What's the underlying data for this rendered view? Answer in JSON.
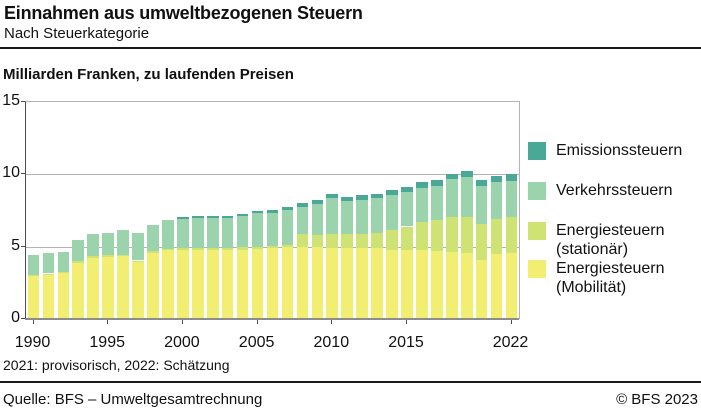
{
  "header": {
    "title": "Einnahmen aus umweltbezogenen Steuern",
    "subtitle": "Nach Steuerkategorie"
  },
  "unit_label": "Milliarden Franken, zu laufenden Preisen",
  "footnote": "2021: provisorisch, 2022: Schätzung",
  "footer": {
    "source": "Quelle: BFS – Umweltgesamtrechnung",
    "copyright": "© BFS 2023"
  },
  "legend": {
    "position": "right",
    "items": [
      {
        "label": "Emissionssteuern",
        "color": "#4AA896"
      },
      {
        "label": "Verkehrssteuern",
        "color": "#9AD3AC"
      },
      {
        "label": "Energiesteuern (stationär)",
        "color": "#CFE375"
      },
      {
        "label": "Energiesteuern (Mobilität)",
        "color": "#F1EE71"
      }
    ]
  },
  "chart_data": {
    "type": "bar",
    "stacked": true,
    "title": "Einnahmen aus umweltbezogenen Steuern",
    "ylabel": "Milliarden Franken, zu laufenden Preisen",
    "ylim": [
      0,
      15
    ],
    "yticks": [
      0,
      5,
      10,
      15
    ],
    "gridlines": [
      5,
      10
    ],
    "grid": "horizontal",
    "legend_position": "right",
    "x": [
      1990,
      1991,
      1992,
      1993,
      1994,
      1995,
      1996,
      1997,
      1998,
      1999,
      2000,
      2001,
      2002,
      2003,
      2004,
      2005,
      2006,
      2007,
      2008,
      2009,
      2010,
      2011,
      2012,
      2013,
      2014,
      2015,
      2016,
      2017,
      2018,
      2019,
      2020,
      2021,
      2022
    ],
    "xtick_labels": [
      1990,
      1995,
      2000,
      2005,
      2010,
      2015,
      2022
    ],
    "series": [
      {
        "name": "Energiesteuern (Mobilität)",
        "color": "#F1EE71",
        "values": [
          2.95,
          3.05,
          3.15,
          3.9,
          4.25,
          4.3,
          4.35,
          3.95,
          4.6,
          4.75,
          4.75,
          4.75,
          4.75,
          4.75,
          4.8,
          4.85,
          4.9,
          4.95,
          5.0,
          4.95,
          4.9,
          4.9,
          4.9,
          4.9,
          4.8,
          4.8,
          4.8,
          4.7,
          4.65,
          4.6,
          4.1,
          4.5,
          4.55
        ]
      },
      {
        "name": "Energiesteuern (stationär)",
        "color": "#CFE375",
        "values": [
          0.1,
          0.1,
          0.1,
          0.1,
          0.1,
          0.1,
          0.1,
          0.1,
          0.1,
          0.1,
          0.15,
          0.15,
          0.15,
          0.15,
          0.15,
          0.15,
          0.15,
          0.2,
          0.85,
          0.85,
          1.0,
          0.95,
          0.95,
          1.05,
          1.35,
          1.6,
          1.9,
          2.15,
          2.4,
          2.45,
          2.45,
          2.45,
          2.5
        ]
      },
      {
        "name": "Verkehrssteuern",
        "color": "#9AD3AC",
        "values": [
          1.4,
          1.4,
          1.4,
          1.45,
          1.5,
          1.55,
          1.7,
          1.9,
          1.8,
          2.0,
          2.05,
          2.1,
          2.1,
          2.1,
          2.15,
          2.3,
          2.3,
          2.4,
          1.9,
          2.15,
          2.45,
          2.3,
          2.4,
          2.4,
          2.4,
          2.35,
          2.35,
          2.35,
          2.6,
          2.8,
          2.65,
          2.55,
          2.5
        ]
      },
      {
        "name": "Emissionssteuern",
        "color": "#4AA896",
        "values": [
          0,
          0,
          0,
          0,
          0,
          0,
          0,
          0,
          0,
          0,
          0.1,
          0.1,
          0.1,
          0.15,
          0.15,
          0.15,
          0.2,
          0.2,
          0.25,
          0.25,
          0.3,
          0.3,
          0.3,
          0.3,
          0.35,
          0.35,
          0.4,
          0.4,
          0.4,
          0.4,
          0.4,
          0.4,
          0.45
        ]
      }
    ]
  }
}
